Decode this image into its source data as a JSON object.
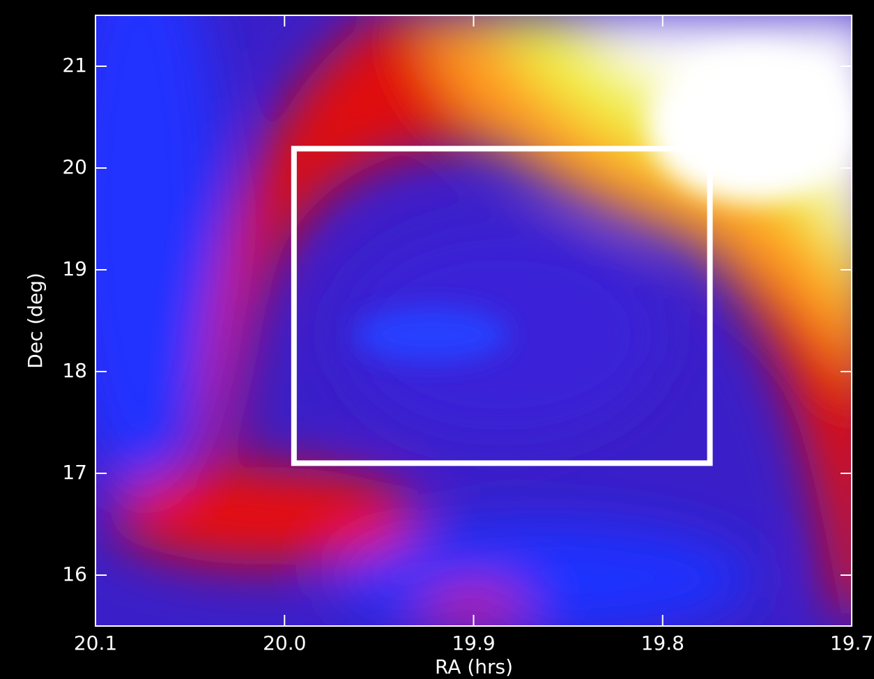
{
  "chart_data": {
    "type": "image",
    "x_label": "RA (hrs)",
    "y_label": "Dec (deg)",
    "xlim": [
      20.1,
      19.7
    ],
    "xticks": [
      20.1,
      {
        "value": 20,
        "label": "20.0"
      },
      19.9,
      19.8,
      19.7
    ],
    "ylim": [
      15.5,
      21.5
    ],
    "yticks": [
      16,
      17,
      18,
      19,
      20,
      21
    ],
    "box": {
      "color": "#ffffff",
      "x": [
        19.995,
        19.775
      ],
      "y": [
        17.1,
        20.19
      ]
    }
  }
}
